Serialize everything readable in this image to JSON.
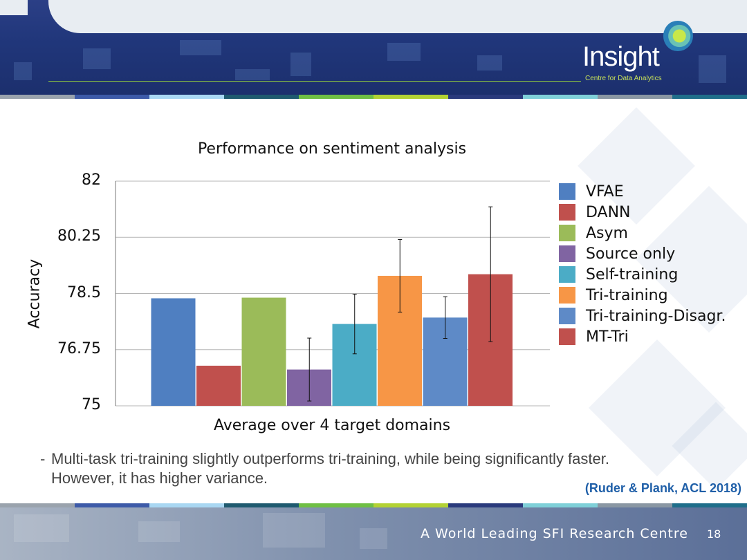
{
  "header": {
    "logo_text": "Insight",
    "logo_subtitle": "Centre for Data Analytics"
  },
  "stripe_colors": [
    "#9aa3ad",
    "#3d5aa8",
    "#a9d7f2",
    "#1f5a6f",
    "#6fbf44",
    "#b3d234",
    "#2a3a7c",
    "#7fd0d8",
    "#8a97a3",
    "#1f6e8a"
  ],
  "chart_data": {
    "type": "bar",
    "title": "Performance on sentiment analysis",
    "xlabel": "Average over 4 target domains",
    "ylabel": "Accuracy",
    "ylim": [
      75,
      82
    ],
    "yticks": [
      "82",
      "80.25",
      "78.5",
      "76.75",
      "75"
    ],
    "grid": true,
    "legend_position": "right",
    "series": [
      {
        "name": "VFAE",
        "value": 78.35,
        "err": null,
        "color": "#4f7fc1"
      },
      {
        "name": "DANN",
        "value": 76.25,
        "err": null,
        "color": "#c0504d"
      },
      {
        "name": "Asym",
        "value": 78.37,
        "err": null,
        "color": "#9bbb59"
      },
      {
        "name": "Source only",
        "value": 76.13,
        "err": 0.98,
        "color": "#8064a2"
      },
      {
        "name": "Self-training",
        "value": 77.55,
        "err": 0.93,
        "color": "#4bacc6"
      },
      {
        "name": "Tri-training",
        "value": 79.05,
        "err": 1.13,
        "color": "#f79646"
      },
      {
        "name": "Tri-training-Disagr.",
        "value": 77.75,
        "err": 0.65,
        "color": "#5e8ac7"
      },
      {
        "name": "MT-Tri",
        "value": 79.1,
        "err": 2.1,
        "color": "#c0504d"
      }
    ]
  },
  "bullet": {
    "dash": "-",
    "text": "Multi-task tri-training slightly outperforms tri-training, while being significantly faster. However, it has higher variance."
  },
  "citation": "(Ruder & Plank, ACL 2018)",
  "footer": {
    "tagline": "A World Leading SFI Research Centre",
    "page_number": "18"
  }
}
